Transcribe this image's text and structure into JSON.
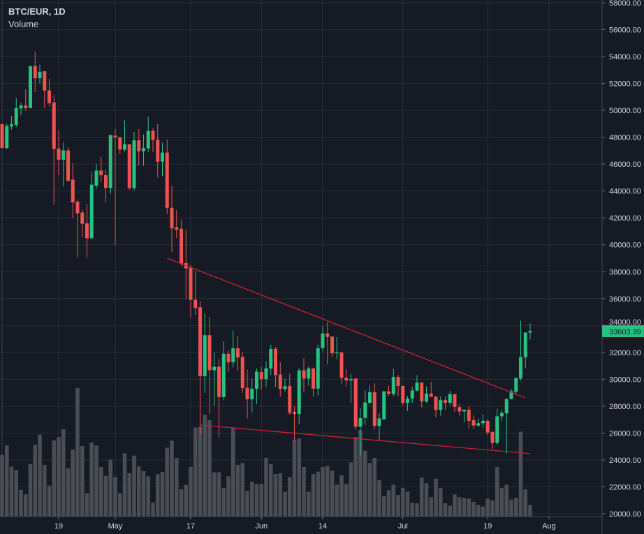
{
  "header": {
    "symbol": "BTC/EUR, 1D",
    "indicator": "Volume"
  },
  "colors": {
    "background": "#161a25",
    "grid": "#2a2e39",
    "up": "#26c281",
    "down": "#ef5350",
    "volume": "#4b4d55",
    "trendline": "#c8232c",
    "axis_text": "#d1d4dc"
  },
  "chart_data": {
    "type": "candlestick",
    "title": "BTC/EUR, 1D",
    "ylim": [
      20000,
      58000
    ],
    "y_ticks": [
      "20000.00",
      "22000.00",
      "24000.00",
      "26000.00",
      "28000.00",
      "30000.00",
      "32000.00",
      "34000.00",
      "36000.00",
      "38000.00",
      "40000.00",
      "42000.00",
      "44000.00",
      "46000.00",
      "48000.00",
      "50000.00",
      "52000.00",
      "54000.00",
      "56000.00",
      "58000.00"
    ],
    "x_ticks": [
      {
        "label": "19",
        "date": "Apr 19"
      },
      {
        "label": "May",
        "date": "May 01"
      },
      {
        "label": "17",
        "date": "May 17"
      },
      {
        "label": "Jun",
        "date": "Jun 01"
      },
      {
        "label": "14",
        "date": "Jun 14"
      },
      {
        "label": "Jul",
        "date": "Jul 01"
      },
      {
        "label": "19",
        "date": "Jul 19"
      },
      {
        "label": "Aug",
        "date": "Aug 01"
      }
    ],
    "last_price": "33603.39",
    "candle_fields": [
      "date",
      "open",
      "high",
      "low",
      "close"
    ],
    "candles": [
      [
        "Apr 07",
        48980,
        48980,
        47190,
        47200
      ],
      [
        "Apr 08",
        47190,
        49010,
        47140,
        48840
      ],
      [
        "Apr 09",
        48800,
        49570,
        48580,
        48960
      ],
      [
        "Apr 10",
        48920,
        50920,
        48750,
        50170
      ],
      [
        "Apr 11",
        50140,
        50570,
        49620,
        50360
      ],
      [
        "Apr 12",
        50360,
        51560,
        50000,
        50170
      ],
      [
        "Apr 13",
        50170,
        53290,
        50170,
        53290
      ],
      [
        "Apr 14",
        53290,
        54380,
        51350,
        52390
      ],
      [
        "Apr 15",
        52390,
        53390,
        51990,
        52870
      ],
      [
        "Apr 16",
        52910,
        52910,
        50190,
        51470
      ],
      [
        "Apr 17",
        51490,
        52350,
        50280,
        50540
      ],
      [
        "Apr 18",
        50590,
        51130,
        42980,
        47140
      ],
      [
        "Apr 19",
        47160,
        48490,
        45200,
        46330
      ],
      [
        "Apr 20",
        46330,
        47630,
        44340,
        47020
      ],
      [
        "Apr 21",
        47020,
        47280,
        44680,
        44770
      ],
      [
        "Apr 22",
        44850,
        46070,
        42000,
        43160
      ],
      [
        "Apr 23",
        43210,
        43380,
        39050,
        42340
      ],
      [
        "Apr 24",
        42400,
        42600,
        40560,
        41560
      ],
      [
        "Apr 25",
        41600,
        43040,
        39050,
        40490
      ],
      [
        "Apr 26",
        40490,
        45430,
        40490,
        44470
      ],
      [
        "Apr 27",
        44400,
        46010,
        44140,
        45520
      ],
      [
        "Apr 28",
        45520,
        46560,
        44660,
        45180
      ],
      [
        "Apr 29",
        45180,
        45610,
        43190,
        44220
      ],
      [
        "Apr 30",
        44220,
        48210,
        43790,
        48160
      ],
      [
        "May 01",
        48120,
        48640,
        39980,
        48000
      ],
      [
        "May 02",
        48000,
        48000,
        46740,
        47080
      ],
      [
        "May 03",
        47080,
        49250,
        46910,
        47480
      ],
      [
        "May 04",
        47480,
        47480,
        44100,
        44220
      ],
      [
        "May 05",
        44220,
        48380,
        44050,
        47770
      ],
      [
        "May 06",
        47770,
        48610,
        45870,
        46960
      ],
      [
        "May 07",
        46960,
        48210,
        45870,
        47200
      ],
      [
        "May 08",
        47170,
        49540,
        46910,
        48470
      ],
      [
        "May 09",
        48470,
        48680,
        46910,
        47810
      ],
      [
        "May 10",
        47830,
        48990,
        45000,
        46180
      ],
      [
        "May 11",
        46180,
        47600,
        45090,
        46860
      ],
      [
        "May 12",
        46860,
        47830,
        42280,
        42750
      ],
      [
        "May 13",
        42750,
        44400,
        39460,
        41230
      ],
      [
        "May 14",
        41310,
        42570,
        40500,
        41130
      ],
      [
        "May 15",
        41190,
        41880,
        38420,
        38590
      ],
      [
        "May 16",
        38640,
        41100,
        35990,
        38250
      ],
      [
        "May 17",
        38300,
        38500,
        34610,
        35910
      ],
      [
        "May 18",
        35910,
        38070,
        34790,
        35300
      ],
      [
        "May 19",
        35350,
        35820,
        25870,
        30230
      ],
      [
        "May 20",
        30230,
        34930,
        28990,
        33280
      ],
      [
        "May 21",
        33280,
        34660,
        27430,
        30670
      ],
      [
        "May 22",
        30670,
        32020,
        28040,
        30930
      ],
      [
        "May 23",
        30930,
        31500,
        25700,
        28680
      ],
      [
        "May 24",
        28680,
        32830,
        28440,
        31900
      ],
      [
        "May 25",
        31900,
        32140,
        30550,
        31270
      ],
      [
        "May 26",
        31270,
        33630,
        30890,
        32310
      ],
      [
        "May 27",
        32310,
        33230,
        30630,
        31620
      ],
      [
        "May 28",
        31670,
        32020,
        28990,
        29340
      ],
      [
        "May 29",
        29370,
        30720,
        27090,
        28510
      ],
      [
        "May 30",
        28510,
        30060,
        27520,
        29300
      ],
      [
        "May 31",
        29300,
        30810,
        28160,
        30580
      ],
      [
        "Jun 01",
        30530,
        30930,
        29240,
        30010
      ],
      [
        "Jun 02",
        30010,
        31330,
        29420,
        30810
      ],
      [
        "Jun 03",
        30810,
        32580,
        30320,
        32260
      ],
      [
        "Jun 04",
        32260,
        32400,
        29420,
        30320
      ],
      [
        "Jun 05",
        30350,
        31270,
        28720,
        29280
      ],
      [
        "Jun 06",
        29280,
        30060,
        29100,
        29490
      ],
      [
        "Jun 07",
        29490,
        30410,
        27370,
        27510
      ],
      [
        "Jun 08",
        27580,
        27980,
        25460,
        27420
      ],
      [
        "Jun 09",
        27420,
        30810,
        26640,
        30670
      ],
      [
        "Jun 10",
        30670,
        31570,
        29020,
        30060
      ],
      [
        "Jun 11",
        30060,
        30980,
        29540,
        30810
      ],
      [
        "Jun 12",
        30810,
        30880,
        28720,
        29310
      ],
      [
        "Jun 13",
        29310,
        32580,
        28790,
        32320
      ],
      [
        "Jun 14",
        32320,
        33970,
        32060,
        33410
      ],
      [
        "Jun 15",
        33410,
        34280,
        31100,
        33150
      ],
      [
        "Jun 16",
        33180,
        33180,
        31670,
        31930
      ],
      [
        "Jun 17",
        31930,
        33130,
        31500,
        32000
      ],
      [
        "Jun 18",
        32000,
        32000,
        29630,
        30110
      ],
      [
        "Jun 19",
        30110,
        30750,
        29450,
        29920
      ],
      [
        "Jun 20",
        29920,
        30410,
        28240,
        30010
      ],
      [
        "Jun 21",
        30060,
        30060,
        26240,
        26470
      ],
      [
        "Jun 22",
        26470,
        27850,
        24300,
        27110
      ],
      [
        "Jun 23",
        27130,
        29190,
        26610,
        28280
      ],
      [
        "Jun 24",
        28250,
        29540,
        28160,
        29040
      ],
      [
        "Jun 25",
        29040,
        29710,
        26270,
        26540
      ],
      [
        "Jun 26",
        26540,
        27470,
        25410,
        27090
      ],
      [
        "Jun 27",
        27030,
        29140,
        26960,
        29100
      ],
      [
        "Jun 28",
        29100,
        29540,
        28760,
        28920
      ],
      [
        "Jun 29",
        28920,
        30790,
        28760,
        30170
      ],
      [
        "Jun 30",
        30170,
        30340,
        28760,
        29500
      ],
      [
        "Jul 01",
        29500,
        29540,
        28070,
        28250
      ],
      [
        "Jul 02",
        28250,
        28760,
        27640,
        28560
      ],
      [
        "Jul 03",
        28560,
        29450,
        28250,
        29160
      ],
      [
        "Jul 04",
        29160,
        30310,
        29100,
        29760
      ],
      [
        "Jul 05",
        29760,
        29760,
        27900,
        28350
      ],
      [
        "Jul 06",
        28350,
        29480,
        28250,
        28940
      ],
      [
        "Jul 07",
        28940,
        29790,
        28680,
        28700
      ],
      [
        "Jul 08",
        28700,
        28760,
        27180,
        27730
      ],
      [
        "Jul 09",
        27730,
        28730,
        27300,
        28450
      ],
      [
        "Jul 10",
        28450,
        28730,
        27730,
        28250
      ],
      [
        "Jul 11",
        28250,
        29140,
        28040,
        28900
      ],
      [
        "Jul 12",
        28900,
        28900,
        27560,
        27950
      ],
      [
        "Jul 13",
        27930,
        28170,
        27300,
        27610
      ],
      [
        "Jul 14",
        27610,
        27740,
        26790,
        27740
      ],
      [
        "Jul 15",
        27740,
        28000,
        26350,
        26910
      ],
      [
        "Jul 16",
        26960,
        27300,
        26320,
        26560
      ],
      [
        "Jul 17",
        26560,
        27080,
        26440,
        26730
      ],
      [
        "Jul 18",
        26730,
        27420,
        26390,
        26910
      ],
      [
        "Jul 19",
        26910,
        27050,
        25830,
        26040
      ],
      [
        "Jul 20",
        26090,
        26090,
        24800,
        25260
      ],
      [
        "Jul 21",
        25260,
        27820,
        25140,
        27250
      ],
      [
        "Jul 22",
        27250,
        27700,
        26870,
        27500
      ],
      [
        "Jul 23",
        27470,
        28540,
        24490,
        28540
      ],
      [
        "Jul 24",
        28540,
        29290,
        28480,
        29110
      ],
      [
        "Jul 25",
        29070,
        30100,
        28860,
        30100
      ],
      [
        "Jul 26",
        30050,
        34350,
        29900,
        31660
      ],
      [
        "Jul 27",
        31630,
        33480,
        30820,
        33480
      ],
      [
        "Jul 28",
        33480,
        34140,
        32960,
        33603.39
      ]
    ],
    "volume_relative": [
      265,
      305,
      215,
      200,
      115,
      95,
      225,
      308,
      352,
      222,
      133,
      327,
      342,
      375,
      207,
      288,
      552,
      303,
      100,
      318,
      305,
      213,
      175,
      245,
      170,
      100,
      272,
      186,
      262,
      215,
      195,
      173,
      60,
      182,
      192,
      296,
      326,
      252,
      117,
      136,
      213,
      382,
      385,
      437,
      415,
      190,
      190,
      123,
      173,
      382,
      222,
      230,
      110,
      150,
      140,
      140,
      252,
      225,
      183,
      186,
      107,
      170,
      330,
      335,
      213,
      107,
      183,
      193,
      213,
      217,
      197,
      137,
      177,
      140,
      233,
      342,
      372,
      283,
      230,
      252,
      157,
      87,
      113,
      137,
      93,
      123,
      107,
      60,
      57,
      167,
      143,
      83,
      163,
      123,
      57,
      47,
      95,
      83,
      80,
      77,
      63,
      50,
      43,
      77,
      70,
      213,
      123,
      137,
      73,
      80,
      365,
      117,
      50
    ],
    "trendlines": [
      {
        "from": [
          "May 12",
          39000
        ],
        "to": [
          "Jul 27",
          28620
        ]
      },
      {
        "from": [
          "May 19",
          26600
        ],
        "to": [
          "Jul 28",
          24470
        ]
      }
    ],
    "grid": true
  }
}
